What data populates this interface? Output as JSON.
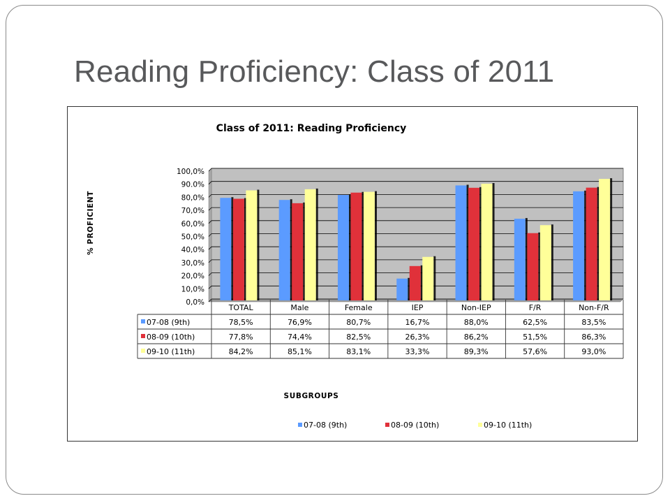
{
  "slide": {
    "title": "Reading Proficiency:  Class of 2011"
  },
  "colors": {
    "series": [
      "#5b9bff",
      "#e0313a",
      "#ffff99"
    ],
    "plot_background": "#c0c0c0",
    "text": "#58595b"
  },
  "chart_data": {
    "type": "bar",
    "title": "Class of 2011:  Reading Proficiency",
    "xlabel": "SUBGROUPS",
    "ylabel": "% PROFICIENT",
    "ylim": [
      0,
      100
    ],
    "y_ticks": [
      "0,0%",
      "10,0%",
      "20,0%",
      "30,0%",
      "40,0%",
      "50,0%",
      "60,0%",
      "70,0%",
      "80,0%",
      "90.0%",
      "100,0%"
    ],
    "grid": true,
    "legend_position": "bottom",
    "data_table": true,
    "categories": [
      "TOTAL",
      "Male",
      "Female",
      "IEP",
      "Non-IEP",
      "F/R",
      "Non-F/R"
    ],
    "series": [
      {
        "name": "07-08 (9th)",
        "values": [
          78.5,
          76.9,
          80.7,
          16.7,
          88.0,
          62.5,
          83.5
        ],
        "labels": [
          "78,5%",
          "76,9%",
          "80,7%",
          "16,7%",
          "88,0%",
          "62,5%",
          "83,5%"
        ]
      },
      {
        "name": "08-09 (10th)",
        "values": [
          77.8,
          74.4,
          82.5,
          26.3,
          86.2,
          51.5,
          86.3
        ],
        "labels": [
          "77,8%",
          "74,4%",
          "82,5%",
          "26,3%",
          "86,2%",
          "51,5%",
          "86,3%"
        ]
      },
      {
        "name": "09-10 (11th)",
        "values": [
          84.2,
          85.1,
          83.1,
          33.3,
          89.3,
          57.6,
          93.0
        ],
        "labels": [
          "84,2%",
          "85,1%",
          "83,1%",
          "33,3%",
          "89,3%",
          "57,6%",
          "93,0%"
        ]
      }
    ]
  }
}
